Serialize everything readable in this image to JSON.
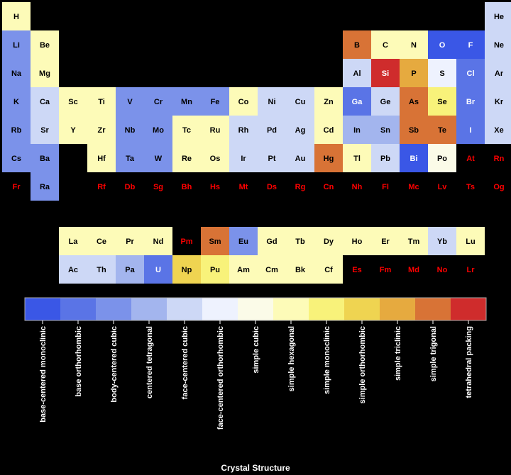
{
  "chart_data": {
    "type": "heatmap",
    "title": "",
    "colorbar_title": "Crystal Structure",
    "categories": [
      {
        "label": "base-centered monoclinic",
        "color": "#3a57e6"
      },
      {
        "label": "base orthorhombic",
        "color": "#5a74e6"
      },
      {
        "label": "body-centered cubic",
        "color": "#7b92ea"
      },
      {
        "label": "centered tetragonal",
        "color": "#a3b5ee"
      },
      {
        "label": "face-centered cubic",
        "color": "#cdd8f6"
      },
      {
        "label": "face-centered orthorhombic",
        "color": "#eef2fe"
      },
      {
        "label": "simple cubic",
        "color": "#fbfbe8"
      },
      {
        "label": "simple hexagonal",
        "color": "#fdfbb8"
      },
      {
        "label": "simple monoclinic",
        "color": "#f8f27a"
      },
      {
        "label": "simple orthorhombic",
        "color": "#efd451"
      },
      {
        "label": "simple triclinic",
        "color": "#e6aa3f"
      },
      {
        "label": "simple trigonal",
        "color": "#d87336"
      },
      {
        "label": "tetrahedral packing",
        "color": "#cf2c2c"
      }
    ],
    "missing_text_color": "#ff0000",
    "elements": [
      {
        "s": "H",
        "r": 0,
        "c": 0,
        "k": 7
      },
      {
        "s": "He",
        "r": 0,
        "c": 17,
        "k": 4
      },
      {
        "s": "Li",
        "r": 1,
        "c": 0,
        "k": 2
      },
      {
        "s": "Be",
        "r": 1,
        "c": 1,
        "k": 7
      },
      {
        "s": "B",
        "r": 1,
        "c": 12,
        "k": 11
      },
      {
        "s": "C",
        "r": 1,
        "c": 13,
        "k": 7
      },
      {
        "s": "N",
        "r": 1,
        "c": 14,
        "k": 7
      },
      {
        "s": "O",
        "r": 1,
        "c": 15,
        "k": 0
      },
      {
        "s": "F",
        "r": 1,
        "c": 16,
        "k": 0
      },
      {
        "s": "Ne",
        "r": 1,
        "c": 17,
        "k": 4
      },
      {
        "s": "Na",
        "r": 2,
        "c": 0,
        "k": 2
      },
      {
        "s": "Mg",
        "r": 2,
        "c": 1,
        "k": 7
      },
      {
        "s": "Al",
        "r": 2,
        "c": 12,
        "k": 4
      },
      {
        "s": "Si",
        "r": 2,
        "c": 13,
        "k": 12
      },
      {
        "s": "P",
        "r": 2,
        "c": 14,
        "k": 10
      },
      {
        "s": "S",
        "r": 2,
        "c": 15,
        "k": 5
      },
      {
        "s": "Cl",
        "r": 2,
        "c": 16,
        "k": 1
      },
      {
        "s": "Ar",
        "r": 2,
        "c": 17,
        "k": 4
      },
      {
        "s": "K",
        "r": 3,
        "c": 0,
        "k": 2
      },
      {
        "s": "Ca",
        "r": 3,
        "c": 1,
        "k": 4
      },
      {
        "s": "Sc",
        "r": 3,
        "c": 2,
        "k": 7
      },
      {
        "s": "Ti",
        "r": 3,
        "c": 3,
        "k": 7
      },
      {
        "s": "V",
        "r": 3,
        "c": 4,
        "k": 2
      },
      {
        "s": "Cr",
        "r": 3,
        "c": 5,
        "k": 2
      },
      {
        "s": "Mn",
        "r": 3,
        "c": 6,
        "k": 2
      },
      {
        "s": "Fe",
        "r": 3,
        "c": 7,
        "k": 2
      },
      {
        "s": "Co",
        "r": 3,
        "c": 8,
        "k": 7
      },
      {
        "s": "Ni",
        "r": 3,
        "c": 9,
        "k": 4
      },
      {
        "s": "Cu",
        "r": 3,
        "c": 10,
        "k": 4
      },
      {
        "s": "Zn",
        "r": 3,
        "c": 11,
        "k": 7
      },
      {
        "s": "Ga",
        "r": 3,
        "c": 12,
        "k": 1
      },
      {
        "s": "Ge",
        "r": 3,
        "c": 13,
        "k": 4
      },
      {
        "s": "As",
        "r": 3,
        "c": 14,
        "k": 11
      },
      {
        "s": "Se",
        "r": 3,
        "c": 15,
        "k": 8
      },
      {
        "s": "Br",
        "r": 3,
        "c": 16,
        "k": 1
      },
      {
        "s": "Kr",
        "r": 3,
        "c": 17,
        "k": 4
      },
      {
        "s": "Rb",
        "r": 4,
        "c": 0,
        "k": 2
      },
      {
        "s": "Sr",
        "r": 4,
        "c": 1,
        "k": 4
      },
      {
        "s": "Y",
        "r": 4,
        "c": 2,
        "k": 7
      },
      {
        "s": "Zr",
        "r": 4,
        "c": 3,
        "k": 7
      },
      {
        "s": "Nb",
        "r": 4,
        "c": 4,
        "k": 2
      },
      {
        "s": "Mo",
        "r": 4,
        "c": 5,
        "k": 2
      },
      {
        "s": "Tc",
        "r": 4,
        "c": 6,
        "k": 7
      },
      {
        "s": "Ru",
        "r": 4,
        "c": 7,
        "k": 7
      },
      {
        "s": "Rh",
        "r": 4,
        "c": 8,
        "k": 4
      },
      {
        "s": "Pd",
        "r": 4,
        "c": 9,
        "k": 4
      },
      {
        "s": "Ag",
        "r": 4,
        "c": 10,
        "k": 4
      },
      {
        "s": "Cd",
        "r": 4,
        "c": 11,
        "k": 7
      },
      {
        "s": "In",
        "r": 4,
        "c": 12,
        "k": 3
      },
      {
        "s": "Sn",
        "r": 4,
        "c": 13,
        "k": 3
      },
      {
        "s": "Sb",
        "r": 4,
        "c": 14,
        "k": 11
      },
      {
        "s": "Te",
        "r": 4,
        "c": 15,
        "k": 11
      },
      {
        "s": "I",
        "r": 4,
        "c": 16,
        "k": 1
      },
      {
        "s": "Xe",
        "r": 4,
        "c": 17,
        "k": 4
      },
      {
        "s": "Cs",
        "r": 5,
        "c": 0,
        "k": 2
      },
      {
        "s": "Ba",
        "r": 5,
        "c": 1,
        "k": 2
      },
      {
        "s": "Hf",
        "r": 5,
        "c": 3,
        "k": 7
      },
      {
        "s": "Ta",
        "r": 5,
        "c": 4,
        "k": 2
      },
      {
        "s": "W",
        "r": 5,
        "c": 5,
        "k": 2
      },
      {
        "s": "Re",
        "r": 5,
        "c": 6,
        "k": 7
      },
      {
        "s": "Os",
        "r": 5,
        "c": 7,
        "k": 7
      },
      {
        "s": "Ir",
        "r": 5,
        "c": 8,
        "k": 4
      },
      {
        "s": "Pt",
        "r": 5,
        "c": 9,
        "k": 4
      },
      {
        "s": "Au",
        "r": 5,
        "c": 10,
        "k": 4
      },
      {
        "s": "Hg",
        "r": 5,
        "c": 11,
        "k": 11
      },
      {
        "s": "Tl",
        "r": 5,
        "c": 12,
        "k": 7
      },
      {
        "s": "Pb",
        "r": 5,
        "c": 13,
        "k": 4
      },
      {
        "s": "Bi",
        "r": 5,
        "c": 14,
        "k": 0
      },
      {
        "s": "Po",
        "r": 5,
        "c": 15,
        "k": 6
      },
      {
        "s": "At",
        "r": 5,
        "c": 16,
        "k": null
      },
      {
        "s": "Rn",
        "r": 5,
        "c": 17,
        "k": null
      },
      {
        "s": "Fr",
        "r": 6,
        "c": 0,
        "k": null
      },
      {
        "s": "Ra",
        "r": 6,
        "c": 1,
        "k": 2
      },
      {
        "s": "Rf",
        "r": 6,
        "c": 3,
        "k": null
      },
      {
        "s": "Db",
        "r": 6,
        "c": 4,
        "k": null
      },
      {
        "s": "Sg",
        "r": 6,
        "c": 5,
        "k": null
      },
      {
        "s": "Bh",
        "r": 6,
        "c": 6,
        "k": null
      },
      {
        "s": "Hs",
        "r": 6,
        "c": 7,
        "k": null
      },
      {
        "s": "Mt",
        "r": 6,
        "c": 8,
        "k": null
      },
      {
        "s": "Ds",
        "r": 6,
        "c": 9,
        "k": null
      },
      {
        "s": "Rg",
        "r": 6,
        "c": 10,
        "k": null
      },
      {
        "s": "Cn",
        "r": 6,
        "c": 11,
        "k": null
      },
      {
        "s": "Nh",
        "r": 6,
        "c": 12,
        "k": null
      },
      {
        "s": "Fl",
        "r": 6,
        "c": 13,
        "k": null
      },
      {
        "s": "Mc",
        "r": 6,
        "c": 14,
        "k": null
      },
      {
        "s": "Lv",
        "r": 6,
        "c": 15,
        "k": null
      },
      {
        "s": "Ts",
        "r": 6,
        "c": 16,
        "k": null
      },
      {
        "s": "Og",
        "r": 6,
        "c": 17,
        "k": null
      },
      {
        "s": "La",
        "r": 7,
        "c": 2,
        "k": 7
      },
      {
        "s": "Ce",
        "r": 7,
        "c": 3,
        "k": 7
      },
      {
        "s": "Pr",
        "r": 7,
        "c": 4,
        "k": 7
      },
      {
        "s": "Nd",
        "r": 7,
        "c": 5,
        "k": 7
      },
      {
        "s": "Pm",
        "r": 7,
        "c": 6,
        "k": null
      },
      {
        "s": "Sm",
        "r": 7,
        "c": 7,
        "k": 11
      },
      {
        "s": "Eu",
        "r": 7,
        "c": 8,
        "k": 2
      },
      {
        "s": "Gd",
        "r": 7,
        "c": 9,
        "k": 7
      },
      {
        "s": "Tb",
        "r": 7,
        "c": 10,
        "k": 7
      },
      {
        "s": "Dy",
        "r": 7,
        "c": 11,
        "k": 7
      },
      {
        "s": "Ho",
        "r": 7,
        "c": 12,
        "k": 7
      },
      {
        "s": "Er",
        "r": 7,
        "c": 13,
        "k": 7
      },
      {
        "s": "Tm",
        "r": 7,
        "c": 14,
        "k": 7
      },
      {
        "s": "Yb",
        "r": 7,
        "c": 15,
        "k": 4
      },
      {
        "s": "Lu",
        "r": 7,
        "c": 16,
        "k": 7
      },
      {
        "s": "Ac",
        "r": 8,
        "c": 2,
        "k": 4
      },
      {
        "s": "Th",
        "r": 8,
        "c": 3,
        "k": 4
      },
      {
        "s": "Pa",
        "r": 8,
        "c": 4,
        "k": 3
      },
      {
        "s": "U",
        "r": 8,
        "c": 5,
        "k": 1
      },
      {
        "s": "Np",
        "r": 8,
        "c": 6,
        "k": 9
      },
      {
        "s": "Pu",
        "r": 8,
        "c": 7,
        "k": 8
      },
      {
        "s": "Am",
        "r": 8,
        "c": 8,
        "k": 7
      },
      {
        "s": "Cm",
        "r": 8,
        "c": 9,
        "k": 7
      },
      {
        "s": "Bk",
        "r": 8,
        "c": 10,
        "k": 7
      },
      {
        "s": "Cf",
        "r": 8,
        "c": 11,
        "k": 7
      },
      {
        "s": "Es",
        "r": 8,
        "c": 12,
        "k": null
      },
      {
        "s": "Fm",
        "r": 8,
        "c": 13,
        "k": null
      },
      {
        "s": "Md",
        "r": 8,
        "c": 14,
        "k": null
      },
      {
        "s": "No",
        "r": 8,
        "c": 15,
        "k": null
      },
      {
        "s": "Lr",
        "r": 8,
        "c": 16,
        "k": null
      }
    ]
  }
}
